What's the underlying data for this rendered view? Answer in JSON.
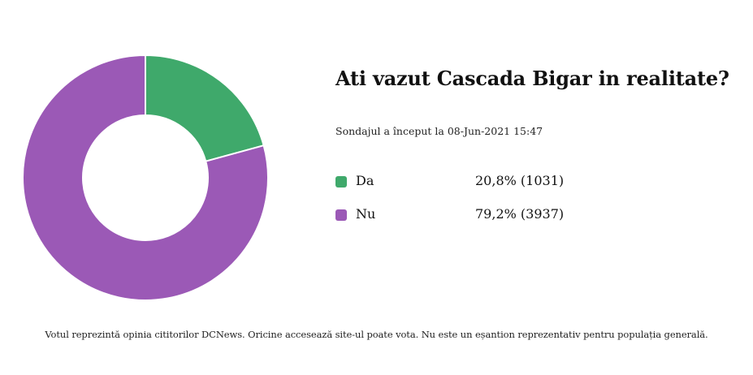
{
  "title": "Ati vazut Cascada Bigar in realitate?",
  "started": "Sondajul a început la 08-Jun-2021 15:47",
  "footnote": "Votul reprezintă opinia cititorilor DCNews. Oricine accesează site-ul poate vota. Nu este un eșantion reprezentativ pentru populația generală.",
  "chart_data": {
    "type": "pie",
    "variant": "donut",
    "title": "Ati vazut Cascada Bigar in realitate?",
    "categories": [
      "Da",
      "Nu"
    ],
    "values": [
      1031,
      3937
    ],
    "percentages": [
      20.8,
      79.2
    ],
    "colors": [
      "#3fa96b",
      "#9b59b6"
    ],
    "value_labels": [
      "20,8% (1031)",
      "79,2% (3937)"
    ],
    "legend_position": "right"
  }
}
